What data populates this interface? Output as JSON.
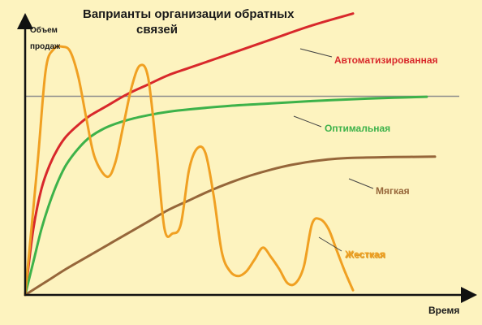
{
  "chart_data": {
    "type": "line",
    "title_line1": "Ваприанты организации обратных",
    "title_line2": "связей",
    "ylabel_line1": "Объем",
    "ylabel_line2": "продаж",
    "xlabel": "Время",
    "grid": false,
    "reference_line": {
      "y": 0.84
    },
    "series": [
      {
        "name": "Автоматизированная",
        "color": "#D8282B",
        "x": [
          0,
          0.02,
          0.04,
          0.06,
          0.08,
          0.1,
          0.13,
          0.16,
          0.2,
          0.25,
          0.3,
          0.35,
          0.4,
          0.5,
          0.6,
          0.7,
          0.8
        ],
        "y": [
          0,
          0.28,
          0.45,
          0.55,
          0.62,
          0.67,
          0.72,
          0.76,
          0.8,
          0.85,
          0.89,
          0.93,
          0.96,
          1.02,
          1.08,
          1.14,
          1.19
        ]
      },
      {
        "name": "Оптимальная",
        "color": "#3DB24A",
        "x": [
          0,
          0.02,
          0.04,
          0.06,
          0.08,
          0.1,
          0.13,
          0.16,
          0.2,
          0.25,
          0.3,
          0.35,
          0.4,
          0.5,
          0.6,
          0.7,
          0.8,
          0.9,
          0.98
        ],
        "y": [
          0,
          0.14,
          0.28,
          0.39,
          0.48,
          0.55,
          0.62,
          0.67,
          0.71,
          0.74,
          0.76,
          0.775,
          0.785,
          0.8,
          0.81,
          0.82,
          0.828,
          0.834,
          0.838
        ]
      },
      {
        "name": "Мягкая",
        "color": "#96663A",
        "x": [
          0,
          0.05,
          0.1,
          0.15,
          0.2,
          0.25,
          0.3,
          0.35,
          0.4,
          0.45,
          0.5,
          0.55,
          0.6,
          0.65,
          0.7,
          0.75,
          0.8,
          0.9,
          1.0
        ],
        "y": [
          0,
          0.055,
          0.11,
          0.16,
          0.21,
          0.26,
          0.31,
          0.36,
          0.4,
          0.44,
          0.475,
          0.505,
          0.53,
          0.55,
          0.565,
          0.575,
          0.58,
          0.583,
          0.585
        ]
      },
      {
        "name": "Жесткая",
        "color": "#F0A022",
        "x": [
          0,
          0.03,
          0.05,
          0.07,
          0.09,
          0.11,
          0.13,
          0.15,
          0.17,
          0.2,
          0.22,
          0.24,
          0.26,
          0.28,
          0.3,
          0.32,
          0.34,
          0.36,
          0.38,
          0.4,
          0.42,
          0.44,
          0.46,
          0.48,
          0.5,
          0.52,
          0.54,
          0.56,
          0.58,
          0.6,
          0.62,
          0.64,
          0.66,
          0.68,
          0.7,
          0.72,
          0.74,
          0.76,
          0.78,
          0.8
        ],
        "y": [
          0,
          0.55,
          0.95,
          1.04,
          1.05,
          1.03,
          0.92,
          0.74,
          0.58,
          0.5,
          0.56,
          0.72,
          0.88,
          0.97,
          0.92,
          0.62,
          0.28,
          0.26,
          0.3,
          0.53,
          0.62,
          0.6,
          0.42,
          0.18,
          0.1,
          0.08,
          0.1,
          0.15,
          0.2,
          0.16,
          0.11,
          0.05,
          0.05,
          0.12,
          0.3,
          0.32,
          0.28,
          0.19,
          0.1,
          0.02
        ]
      }
    ]
  }
}
